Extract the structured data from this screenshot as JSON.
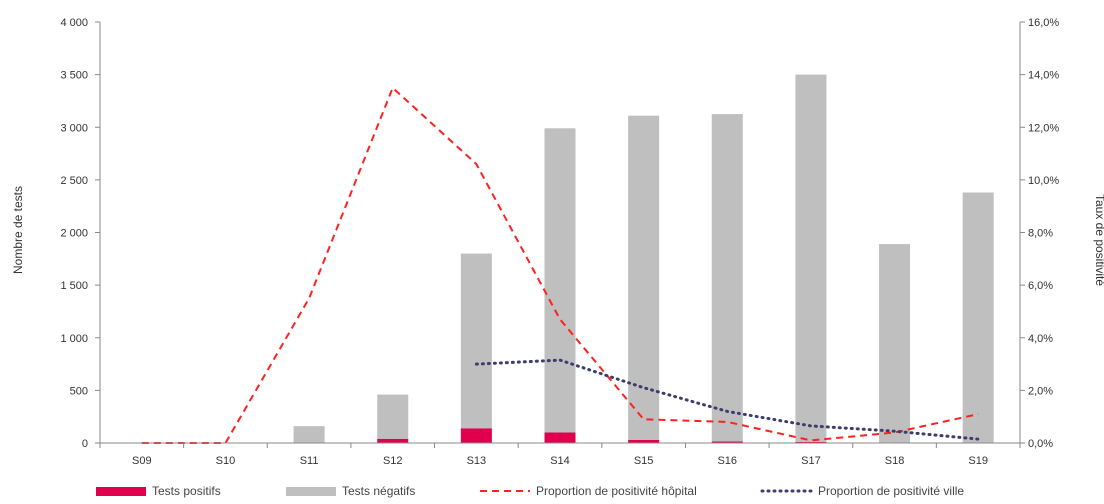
{
  "chart_data": {
    "type": "bar",
    "categories": [
      "S09",
      "S10",
      "S11",
      "S12",
      "S13",
      "S14",
      "S15",
      "S16",
      "S17",
      "S18",
      "S19"
    ],
    "series": [
      {
        "name": "Tests positifs",
        "kind": "bar",
        "axis": "left",
        "color": "#e0004d",
        "values": [
          0,
          0,
          0,
          40,
          140,
          100,
          30,
          15,
          10,
          5,
          3
        ]
      },
      {
        "name": "Tests négatifs",
        "kind": "bar",
        "axis": "left",
        "color": "#bfbfbf",
        "values": [
          0,
          0,
          160,
          420,
          1660,
          2890,
          3080,
          3110,
          3490,
          1885,
          2377
        ]
      },
      {
        "name": "Proportion de positivité hôpital",
        "kind": "line",
        "style": "dashed",
        "axis": "right",
        "color": "#ff2020",
        "values": [
          0.0,
          0.0,
          5.5,
          13.5,
          10.6,
          4.7,
          0.9,
          0.8,
          0.1,
          0.4,
          1.1
        ]
      },
      {
        "name": "Proportion de positivité ville",
        "kind": "line",
        "style": "dotted",
        "axis": "right",
        "color": "#3c3c6e",
        "values": [
          null,
          null,
          null,
          null,
          3.0,
          3.15,
          2.1,
          1.2,
          0.65,
          0.45,
          0.15
        ]
      }
    ],
    "stacked": true,
    "ylabel": "Nombre de tests",
    "y2label": "Taux de positivité",
    "ylim": [
      0,
      4000
    ],
    "y2lim": [
      0,
      16
    ],
    "yticks": [
      "0",
      "500",
      "1 000",
      "1 500",
      "2 000",
      "2 500",
      "3 000",
      "3 500",
      "4 000"
    ],
    "y2ticks": [
      "0,0%",
      "2,0%",
      "4,0%",
      "6,0%",
      "8,0%",
      "10,0%",
      "12,0%",
      "14,0%",
      "16,0%"
    ],
    "grid": false,
    "legend_position": "bottom"
  }
}
